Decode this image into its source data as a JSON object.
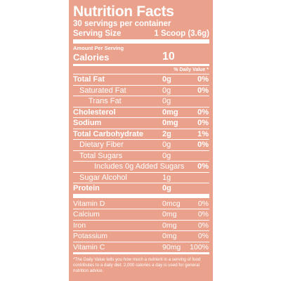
{
  "label": {
    "title": "Nutrition Facts",
    "servings": "30 servings per container",
    "serving_size_label": "Serving Size",
    "serving_size_value": "1 Scoop (3.6g)",
    "amount_per_serving": "Amount Per Serving",
    "calories_label": "Calories",
    "calories_value": "10",
    "daily_value_header": "% Daily Value *",
    "nutrients": [
      {
        "label": "Total Fat",
        "amount": "0g",
        "dv": "0%"
      },
      {
        "label": "Saturated Fat",
        "amount": "0g",
        "dv": "0%"
      },
      {
        "label": "Trans Fat",
        "amount": "0g",
        "dv": ""
      },
      {
        "label": "Cholesterol",
        "amount": "0mg",
        "dv": "0%"
      },
      {
        "label": "Sodium",
        "amount": "0mg",
        "dv": "0%"
      },
      {
        "label": "Total Carbohydrate",
        "amount": "2g",
        "dv": "1%"
      },
      {
        "label": "Dietary Fiber",
        "amount": "0g",
        "dv": "0%"
      },
      {
        "label": "Total Sugars",
        "amount": "0g",
        "dv": ""
      },
      {
        "label": "Includes 0g Added Sugars",
        "amount": "",
        "dv": "0%"
      },
      {
        "label": "Sugar Alcohol",
        "amount": "1g",
        "dv": ""
      },
      {
        "label": "Protein",
        "amount": "0g",
        "dv": ""
      }
    ],
    "vitamins": [
      {
        "label": "Vitamin D",
        "amount": "0mcg",
        "dv": "0%"
      },
      {
        "label": "Calcium",
        "amount": "0mg",
        "dv": "0%"
      },
      {
        "label": "Iron",
        "amount": "0mg",
        "dv": "0%"
      },
      {
        "label": "Potassium",
        "amount": "0mg",
        "dv": "0%"
      },
      {
        "label": "Vitamin C",
        "amount": "90mg",
        "dv": "100%"
      }
    ],
    "footnote": "*The Daily Value tells you how much a nutrient in a serving of food contributes to a daily diet. 2,000 calories a day is used for general nutrition advice."
  },
  "colors": {
    "panel_background": "#eba28c",
    "text": "#ffffff"
  }
}
